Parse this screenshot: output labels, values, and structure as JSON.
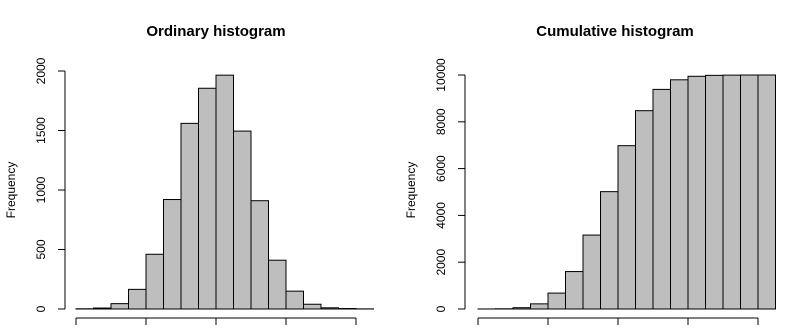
{
  "chart_data": [
    {
      "type": "histogram",
      "title": "Ordinary histogram",
      "ylabel": "Frequency",
      "bins": [
        -4,
        -3.5,
        -3,
        -2.5,
        -2,
        -1.5,
        -1,
        -0.5,
        0,
        0.5,
        1,
        1.5,
        2,
        2.5,
        3,
        3.5,
        4,
        4.5
      ],
      "values": [
        2,
        8,
        45,
        165,
        460,
        920,
        1560,
        1855,
        1965,
        1495,
        910,
        410,
        150,
        40,
        10,
        4,
        1
      ],
      "color": "#bebebe",
      "xlim": [
        -4,
        4
      ],
      "xticks": [
        -4,
        -2,
        0,
        2,
        4
      ],
      "ylim": [
        0,
        2000
      ],
      "yticks": [
        0,
        500,
        1000,
        1500,
        2000
      ]
    },
    {
      "type": "histogram",
      "title": "Cumulative histogram",
      "ylabel": "Frequency",
      "bins": [
        -4,
        -3.5,
        -3,
        -2.5,
        -2,
        -1.5,
        -1,
        -0.5,
        0,
        0.5,
        1,
        1.5,
        2,
        2.5,
        3,
        3.5,
        4,
        4.5
      ],
      "values": [
        2,
        10,
        55,
        220,
        680,
        1600,
        3160,
        5015,
        6980,
        8475,
        9385,
        9795,
        9945,
        9985,
        9995,
        9999,
        10000
      ],
      "color": "#bebebe",
      "xlim": [
        -4,
        4
      ],
      "xticks": [
        -4,
        -2,
        0,
        2,
        4
      ],
      "ylim": [
        0,
        10000
      ],
      "yticks": [
        0,
        2000,
        4000,
        6000,
        8000,
        10000
      ]
    }
  ]
}
